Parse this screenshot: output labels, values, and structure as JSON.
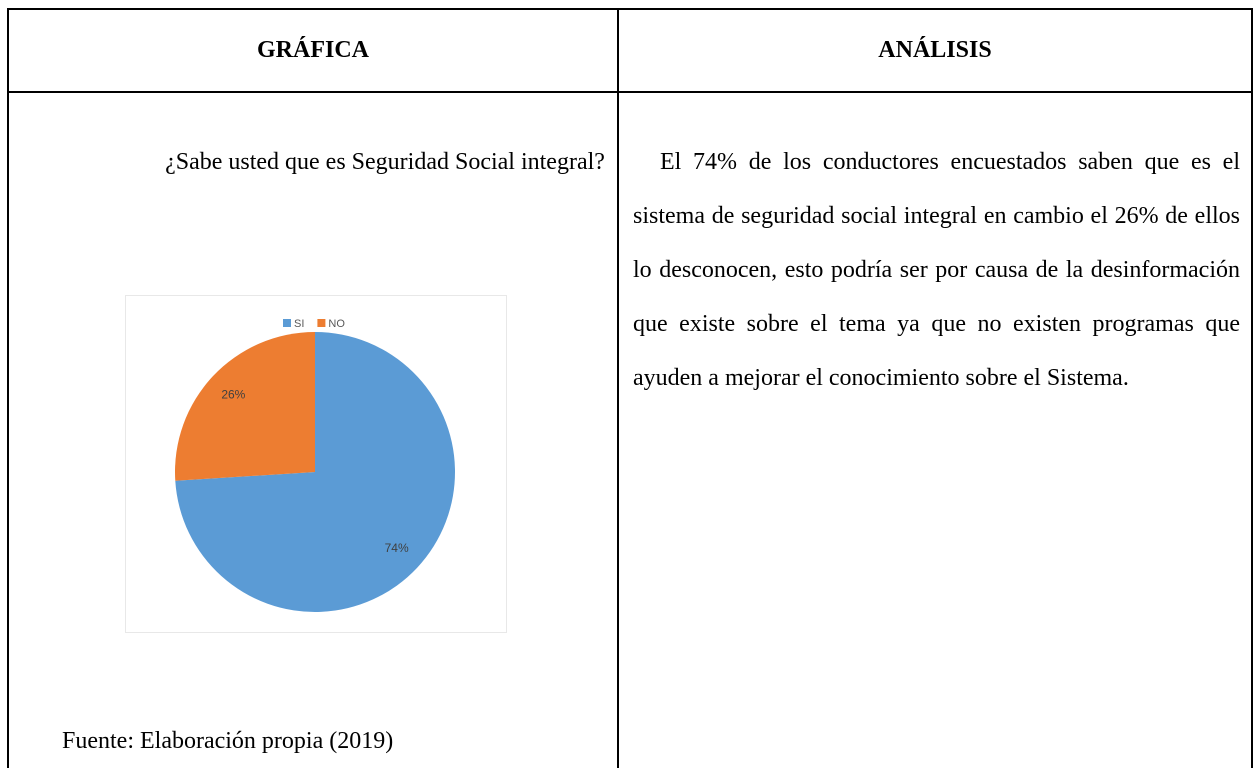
{
  "table": {
    "headers": [
      "GRÁFICA",
      "ANÁLISIS"
    ]
  },
  "question": "¿Sabe usted que es Seguridad Social integral?",
  "chart_data": {
    "type": "pie",
    "categories": [
      "SI",
      "NO"
    ],
    "values": [
      74,
      26
    ],
    "value_labels": [
      "74%",
      "26%"
    ],
    "colors": [
      "#5b9bd5",
      "#ed7d31"
    ],
    "legend": "top"
  },
  "source": "Fuente: Elaboración propia (2019)",
  "analysis": "El 74% de los conductores encuestados saben que es el sistema de seguridad social integral en cambio el 26% de ellos lo desconocen, esto podría ser por causa de la desinformación que existe sobre el tema ya que no existen programas que ayuden a mejorar el conocimiento sobre el Sistema."
}
